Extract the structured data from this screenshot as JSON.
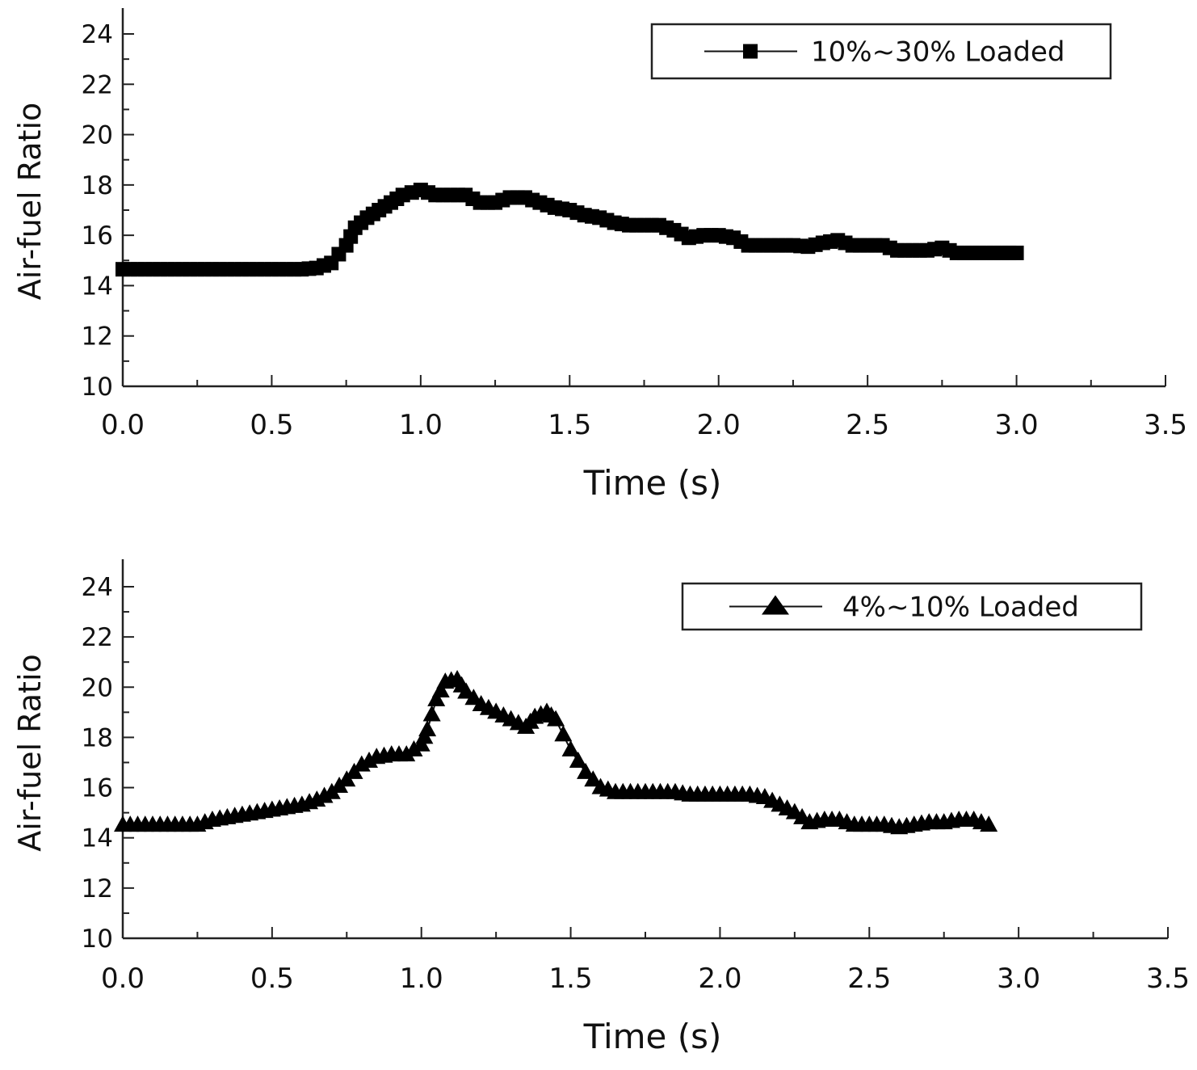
{
  "chart_data": [
    {
      "type": "line",
      "title": "",
      "xlabel": "Time (s)",
      "ylabel": "Air-fuel Ratio",
      "xlim": [
        0,
        3.5
      ],
      "ylim": [
        10,
        24
      ],
      "xticks": [
        "0.0",
        "0.5",
        "1.0",
        "1.5",
        "2.0",
        "2.5",
        "3.0",
        "3.5"
      ],
      "yticks": [
        "10",
        "12",
        "14",
        "16",
        "18",
        "20",
        "22",
        "24"
      ],
      "legend_position": "top-right",
      "series": [
        {
          "name": "10%~30% Loaded",
          "marker": "square",
          "x": [
            0,
            0.05,
            0.1,
            0.15,
            0.2,
            0.25,
            0.3,
            0.35,
            0.4,
            0.45,
            0.5,
            0.55,
            0.6,
            0.65,
            0.7,
            0.75,
            0.78,
            0.82,
            0.86,
            0.9,
            0.94,
            1.0,
            1.05,
            1.1,
            1.15,
            1.2,
            1.25,
            1.3,
            1.35,
            1.4,
            1.45,
            1.5,
            1.55,
            1.6,
            1.65,
            1.7,
            1.75,
            1.8,
            1.85,
            1.9,
            1.95,
            2.0,
            2.05,
            2.1,
            2.15,
            2.2,
            2.25,
            2.3,
            2.35,
            2.4,
            2.45,
            2.5,
            2.55,
            2.6,
            2.65,
            2.7,
            2.75,
            2.8,
            2.85,
            2.9,
            2.95,
            3.0
          ],
          "y": [
            14.65,
            14.65,
            14.65,
            14.65,
            14.65,
            14.65,
            14.65,
            14.65,
            14.65,
            14.65,
            14.65,
            14.65,
            14.65,
            14.7,
            14.9,
            15.6,
            16.3,
            16.7,
            17.0,
            17.3,
            17.6,
            17.8,
            17.6,
            17.6,
            17.6,
            17.3,
            17.3,
            17.5,
            17.5,
            17.3,
            17.1,
            17.0,
            16.8,
            16.7,
            16.5,
            16.4,
            16.4,
            16.4,
            16.2,
            15.9,
            16.0,
            16.0,
            15.9,
            15.6,
            15.6,
            15.6,
            15.6,
            15.55,
            15.7,
            15.8,
            15.6,
            15.6,
            15.6,
            15.4,
            15.4,
            15.4,
            15.5,
            15.3,
            15.3,
            15.3,
            15.3,
            15.3
          ]
        }
      ]
    },
    {
      "type": "line",
      "title": "",
      "xlabel": "Time (s)",
      "ylabel": "Air-fuel Ratio",
      "xlim": [
        0,
        3.5
      ],
      "ylim": [
        10,
        24
      ],
      "xticks": [
        "0.0",
        "0.5",
        "1.0",
        "1.5",
        "2.0",
        "2.5",
        "3.0",
        "3.5"
      ],
      "yticks": [
        "10",
        "12",
        "14",
        "16",
        "18",
        "20",
        "22",
        "24"
      ],
      "legend_position": "top-right",
      "series": [
        {
          "name": "4%~10% Loaded",
          "marker": "triangle",
          "x": [
            0,
            0.05,
            0.1,
            0.15,
            0.2,
            0.25,
            0.3,
            0.35,
            0.4,
            0.45,
            0.5,
            0.55,
            0.6,
            0.65,
            0.7,
            0.75,
            0.8,
            0.85,
            0.9,
            0.95,
            1.0,
            1.02,
            1.05,
            1.08,
            1.12,
            1.15,
            1.2,
            1.25,
            1.3,
            1.35,
            1.38,
            1.42,
            1.45,
            1.5,
            1.55,
            1.6,
            1.65,
            1.7,
            1.75,
            1.8,
            1.85,
            1.9,
            1.95,
            2.0,
            2.05,
            2.1,
            2.15,
            2.2,
            2.25,
            2.3,
            2.35,
            2.4,
            2.45,
            2.5,
            2.55,
            2.6,
            2.65,
            2.7,
            2.75,
            2.8,
            2.85,
            2.9
          ],
          "y": [
            14.5,
            14.5,
            14.5,
            14.5,
            14.5,
            14.5,
            14.7,
            14.8,
            14.9,
            15.0,
            15.1,
            15.2,
            15.3,
            15.5,
            15.8,
            16.3,
            16.9,
            17.2,
            17.3,
            17.3,
            17.7,
            18.3,
            19.5,
            20.2,
            20.3,
            19.8,
            19.3,
            19.0,
            18.7,
            18.4,
            18.8,
            19.0,
            18.7,
            17.5,
            16.6,
            16.0,
            15.8,
            15.8,
            15.8,
            15.8,
            15.8,
            15.7,
            15.7,
            15.7,
            15.7,
            15.7,
            15.6,
            15.3,
            15.0,
            14.6,
            14.7,
            14.7,
            14.5,
            14.5,
            14.5,
            14.4,
            14.5,
            14.6,
            14.6,
            14.7,
            14.7,
            14.5
          ]
        }
      ]
    }
  ]
}
